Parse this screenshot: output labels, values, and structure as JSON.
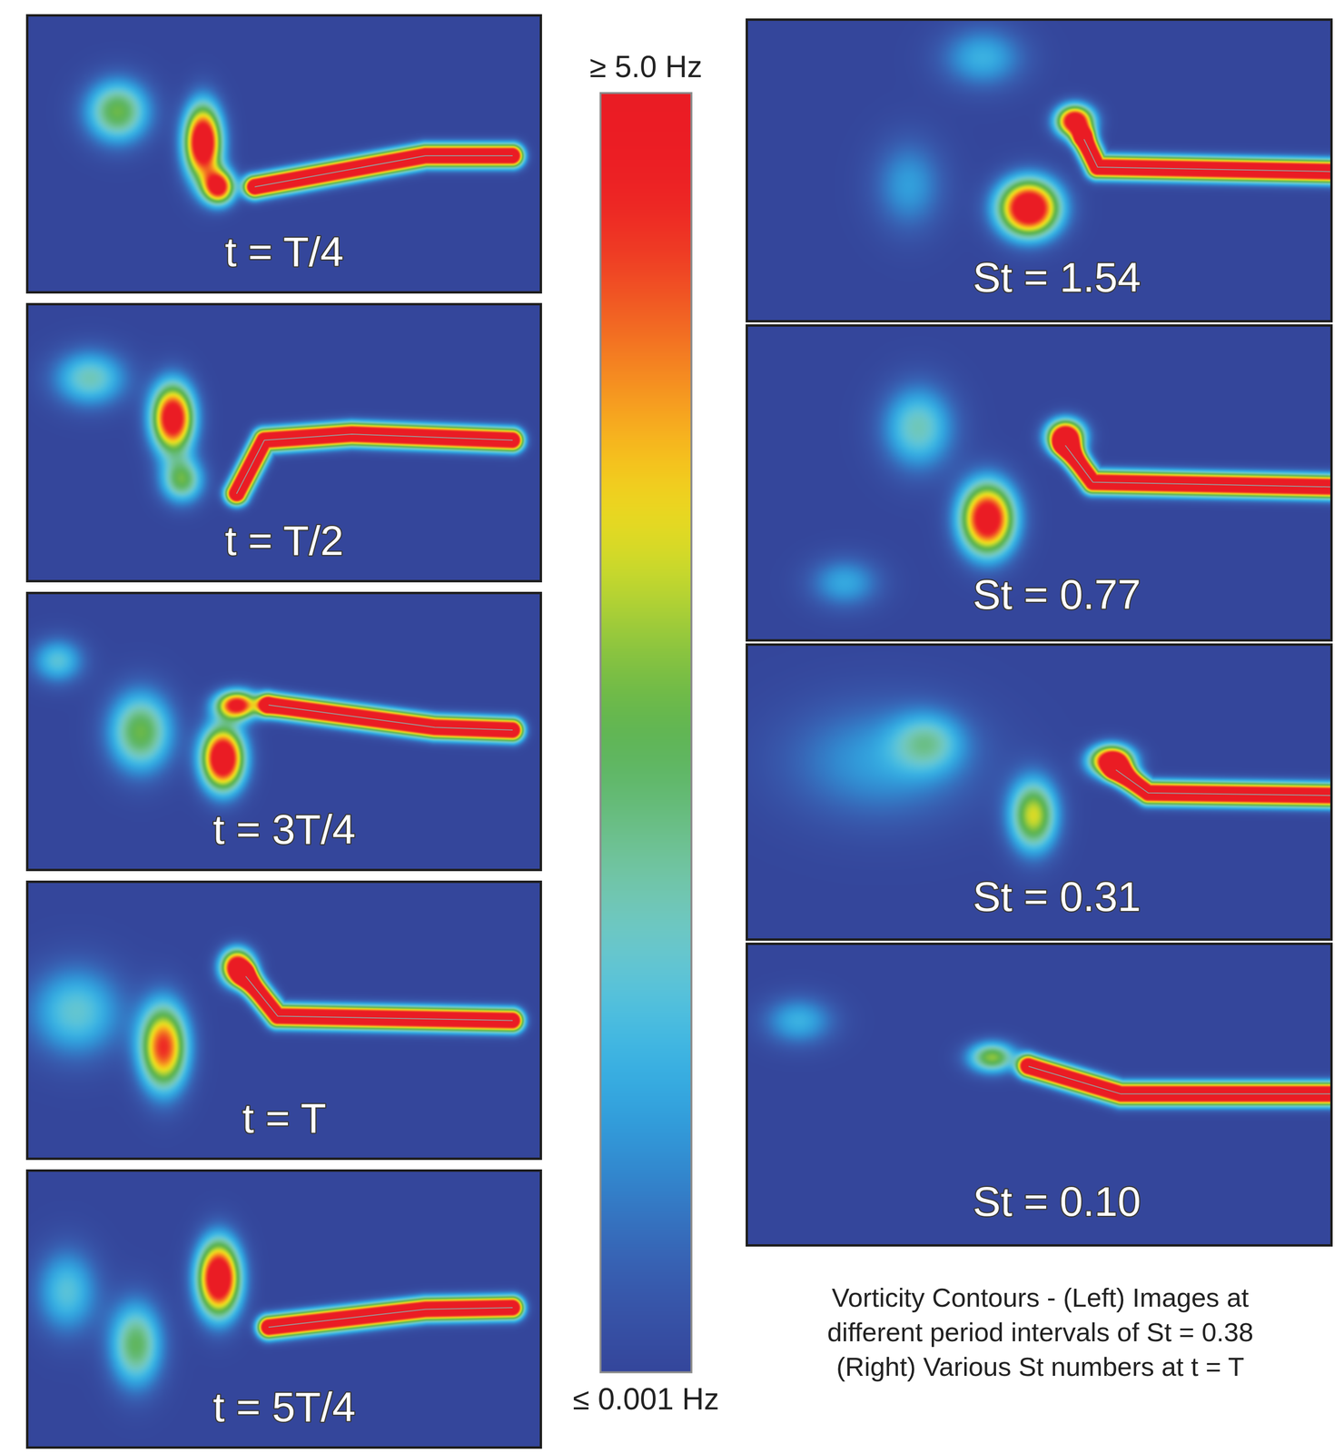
{
  "chart_data": {
    "type": "contour",
    "caption": [
      "Vorticity Contours - (Left) Images at",
      "different period intervals of St = 0.38",
      "(Right) Various St numbers at t = T"
    ],
    "colorbar": {
      "range": [
        0.001,
        5.0
      ],
      "ticks": [
        {
          "value": 5.0,
          "label": "≥ 5.0 Hz"
        },
        {
          "value": 0.001,
          "label": "≤ 0.001 Hz"
        }
      ]
    },
    "panels": [
      {
        "group": "left",
        "label": "t = T/4",
        "vortices": [
          {
            "x": 17.4,
            "y": 34.5,
            "peak": 2.6,
            "rx": 6,
            "ry": 11
          },
          {
            "x": 34.1,
            "y": 45.8,
            "peak": 6,
            "rx": 3.5,
            "ry": 13
          },
          {
            "x": 37.2,
            "y": 62,
            "peak": 5,
            "rx": 3,
            "ry": 6
          }
        ],
        "plate": [
          {
            "x": 44.3,
            "y": 61.9
          },
          {
            "x": 77.6,
            "y": 50.6
          },
          {
            "x": 94.6,
            "y": 50.6
          }
        ]
      },
      {
        "group": "left",
        "label": "t = T/2",
        "vortices": [
          {
            "x": 12,
            "y": 26.5,
            "peak": 1.8,
            "rx": 7,
            "ry": 10
          },
          {
            "x": 28.2,
            "y": 41,
            "peak": 5.5,
            "rx": 4,
            "ry": 12
          },
          {
            "x": 30,
            "y": 63.5,
            "peak": 2.5,
            "rx": 4,
            "ry": 8
          }
        ],
        "plate": [
          {
            "x": 40.7,
            "y": 68.4
          },
          {
            "x": 46.1,
            "y": 49
          },
          {
            "x": 63.2,
            "y": 46.8
          },
          {
            "x": 94.6,
            "y": 49
          }
        ]
      },
      {
        "group": "left",
        "label": "t = 3T/4",
        "vortices": [
          {
            "x": 5.7,
            "y": 24.2,
            "peak": 1.5,
            "rx": 5,
            "ry": 8
          },
          {
            "x": 21.9,
            "y": 50,
            "peak": 2.6,
            "rx": 6,
            "ry": 14
          },
          {
            "x": 38,
            "y": 59.7,
            "peak": 6,
            "rx": 4,
            "ry": 11
          },
          {
            "x": 40.8,
            "y": 40.3,
            "peak": 5,
            "rx": 4,
            "ry": 5
          }
        ],
        "plate": [
          {
            "x": 47,
            "y": 40.3
          },
          {
            "x": 79.4,
            "y": 48.4
          },
          {
            "x": 94.6,
            "y": 49.4
          }
        ]
      },
      {
        "group": "left",
        "label": "t = T",
        "vortices": [
          {
            "x": 9.3,
            "y": 46.8,
            "peak": 1.6,
            "rx": 9,
            "ry": 16
          },
          {
            "x": 26.4,
            "y": 59.7,
            "peak": 4.5,
            "rx": 4.5,
            "ry": 15
          },
          {
            "x": 40.8,
            "y": 30.6,
            "peak": 6,
            "rx": 3,
            "ry": 6
          }
        ],
        "plate": [
          {
            "x": 42.5,
            "y": 34
          },
          {
            "x": 48.7,
            "y": 48.4
          },
          {
            "x": 94.6,
            "y": 50
          }
        ]
      },
      {
        "group": "left",
        "label": "t = 5T/4",
        "vortices": [
          {
            "x": 7.5,
            "y": 43.5,
            "peak": 1.5,
            "rx": 6,
            "ry": 15
          },
          {
            "x": 21,
            "y": 62.9,
            "peak": 2.4,
            "rx": 5,
            "ry": 15
          },
          {
            "x": 37.2,
            "y": 38.7,
            "peak": 6,
            "rx": 4,
            "ry": 13
          }
        ],
        "plate": [
          {
            "x": 47,
            "y": 56.5
          },
          {
            "x": 77.6,
            "y": 50
          },
          {
            "x": 94.6,
            "y": 49.4
          }
        ]
      },
      {
        "group": "right",
        "label": "St = 1.54",
        "vortices": [
          {
            "x": 40.3,
            "y": 12.2,
            "peak": 1.2,
            "rx": 7,
            "ry": 10
          },
          {
            "x": 27.6,
            "y": 54.9,
            "peak": 1.0,
            "rx": 6,
            "ry": 15
          },
          {
            "x": 48.2,
            "y": 62.5,
            "peak": 6,
            "rx": 5,
            "ry": 9
          },
          {
            "x": 56.1,
            "y": 33.5,
            "peak": 6,
            "rx": 3,
            "ry": 5
          }
        ],
        "plate": [
          {
            "x": 57.7,
            "y": 39.6
          },
          {
            "x": 60,
            "y": 48.8
          },
          {
            "x": 100,
            "y": 50.3
          }
        ]
      },
      {
        "group": "right",
        "label": "St = 0.77",
        "vortices": [
          {
            "x": 29.2,
            "y": 32.2,
            "peak": 1.8,
            "rx": 6,
            "ry": 13
          },
          {
            "x": 16.6,
            "y": 81.9,
            "peak": 1.1,
            "rx": 6,
            "ry": 8
          },
          {
            "x": 41.1,
            "y": 61.4,
            "peak": 5.5,
            "rx": 4.5,
            "ry": 11
          },
          {
            "x": 54.5,
            "y": 35.1,
            "peak": 6,
            "rx": 3,
            "ry": 5
          }
        ],
        "plate": [
          {
            "x": 54.5,
            "y": 38
          },
          {
            "x": 59.2,
            "y": 49.7
          },
          {
            "x": 100,
            "y": 51.2
          }
        ]
      },
      {
        "group": "right",
        "label": "St = 0.31",
        "vortices": [
          {
            "x": 22.9,
            "y": 39.3,
            "peak": 1.0,
            "rx": 16,
            "ry": 20
          },
          {
            "x": 30.8,
            "y": 33,
            "peak": 1.4,
            "rx": 6,
            "ry": 10
          },
          {
            "x": 49,
            "y": 57.9,
            "peak": 3.2,
            "rx": 4,
            "ry": 12
          },
          {
            "x": 62.4,
            "y": 39.3,
            "peak": 6,
            "rx": 3.5,
            "ry": 5
          }
        ],
        "plate": [
          {
            "x": 63.2,
            "y": 42.4
          },
          {
            "x": 68.7,
            "y": 50.2
          },
          {
            "x": 100,
            "y": 51.1
          }
        ]
      },
      {
        "group": "right",
        "label": "St = 0.10",
        "vortices": [
          {
            "x": 8.7,
            "y": 25.3,
            "peak": 1.2,
            "rx": 6,
            "ry": 8
          },
          {
            "x": 41.9,
            "y": 37.5,
            "peak": 2.8,
            "rx": 4,
            "ry": 5
          }
        ],
        "plate": [
          {
            "x": 48.2,
            "y": 40.5
          },
          {
            "x": 64,
            "y": 49.7
          },
          {
            "x": 100,
            "y": 49.7
          }
        ]
      }
    ]
  }
}
